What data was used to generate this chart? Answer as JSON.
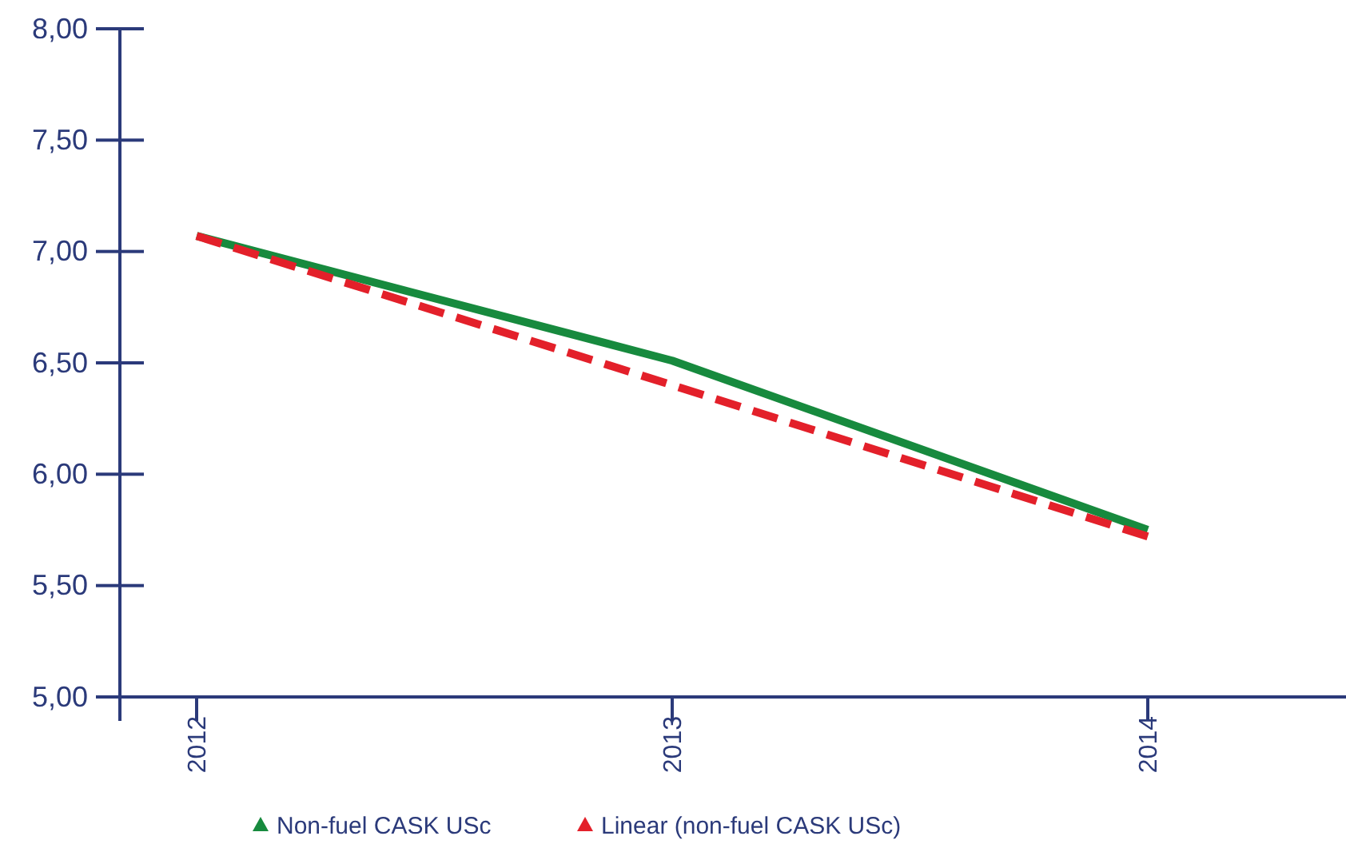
{
  "chart_data": {
    "type": "line",
    "categories": [
      "2012",
      "2013",
      "2014"
    ],
    "series": [
      {
        "name": "Non-fuel CASK USc",
        "color": "#178a3e",
        "values": [
          7.07,
          6.51,
          5.75
        ],
        "line_style": "solid"
      },
      {
        "name": "Linear (non-fuel CASK USc)",
        "color": "#e3202a",
        "values": [
          7.07,
          6.4,
          5.72
        ],
        "line_style": "dashed"
      }
    ],
    "ylim": [
      5,
      8
    ],
    "yticks": [
      {
        "value": 5,
        "label": "5,00"
      },
      {
        "value": 5.5,
        "label": "5,50"
      },
      {
        "value": 6,
        "label": "6,00"
      },
      {
        "value": 6.5,
        "label": "6,50"
      },
      {
        "value": 7,
        "label": "7,00"
      },
      {
        "value": 7.5,
        "label": "7,50"
      },
      {
        "value": 8,
        "label": "8,00"
      }
    ],
    "grid": false,
    "legend": "bottom"
  }
}
